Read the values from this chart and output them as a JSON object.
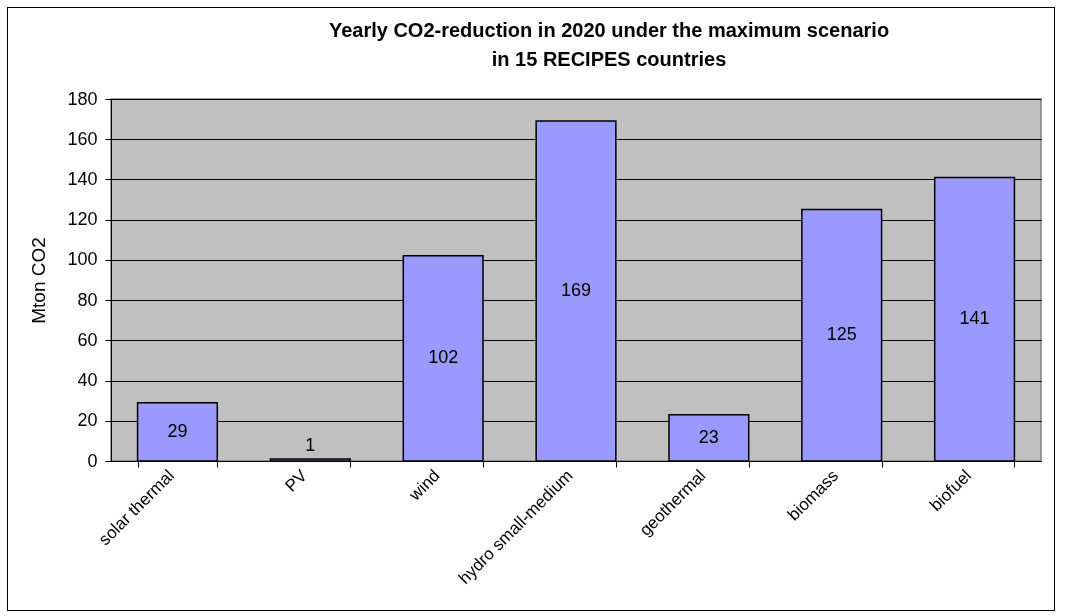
{
  "chart_data": {
    "type": "bar",
    "title": "Yearly CO2-reduction in 2020 under the maximum scenario\nin 15 RECIPES countries",
    "ylabel": "Mton CO2",
    "categories": [
      "solar thermal",
      "PV",
      "wind",
      "hydro small-medium",
      "geothermal",
      "biomass",
      "biofuel"
    ],
    "values": [
      29,
      1,
      102,
      169,
      23,
      125,
      141
    ],
    "color": "#9999ff",
    "ylim": [
      0,
      180
    ],
    "yticks": [
      0,
      20,
      40,
      60,
      80,
      100,
      120,
      140,
      160,
      180
    ],
    "grid": "y",
    "data_labels": true
  }
}
